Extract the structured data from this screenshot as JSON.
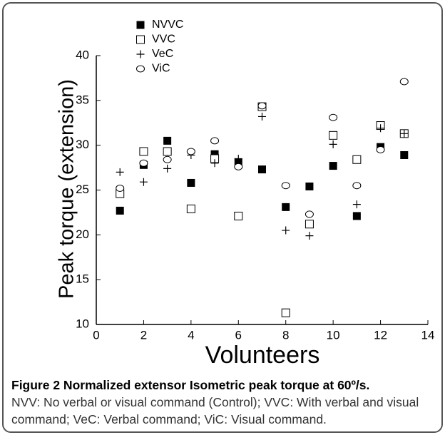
{
  "chart_data": {
    "type": "scatter",
    "x_label": "Volunteers",
    "y_label": "Peak torque (extension)",
    "x": [
      1,
      2,
      3,
      4,
      5,
      6,
      7,
      8,
      9,
      10,
      11,
      12,
      13
    ],
    "series": [
      {
        "name": "NVVC",
        "color": "#000000",
        "marker": "filled-square",
        "values": [
          22.7,
          27.8,
          30.5,
          25.8,
          29.0,
          28.1,
          27.3,
          23.1,
          25.4,
          27.7,
          22.1,
          29.8,
          28.9
        ]
      },
      {
        "name": "VVC",
        "color": "#000000",
        "marker": "open-square",
        "values": [
          24.6,
          29.3,
          29.3,
          22.9,
          28.5,
          22.1,
          34.3,
          11.3,
          21.2,
          31.1,
          28.4,
          32.2,
          31.3
        ]
      },
      {
        "name": "VeC",
        "color": "#000000",
        "marker": "plus",
        "values": [
          27.0,
          25.9,
          27.4,
          28.9,
          28.0,
          28.5,
          33.2,
          20.5,
          19.9,
          30.1,
          23.4,
          31.9,
          31.3
        ]
      },
      {
        "name": "ViC",
        "color": "#000000",
        "marker": "open-circle",
        "values": [
          25.2,
          28.0,
          28.4,
          29.3,
          30.5,
          27.6,
          34.4,
          25.5,
          22.3,
          33.1,
          25.5,
          29.5,
          37.1
        ]
      }
    ],
    "xlim": [
      0,
      14
    ],
    "xticks": [
      0,
      2,
      4,
      6,
      8,
      10,
      12,
      14
    ],
    "ylim": [
      10,
      40
    ],
    "yticks": [
      10,
      15,
      20,
      25,
      30,
      35,
      40
    ],
    "grid": false
  },
  "caption": {
    "title": "Figure 2 Normalized extensor Isometric peak torque at 60º/s.",
    "text": "NVV: No verbal or visual command (Control); VVC: With verbal and visual command; VeC: Verbal command; ViC: Visual command."
  }
}
